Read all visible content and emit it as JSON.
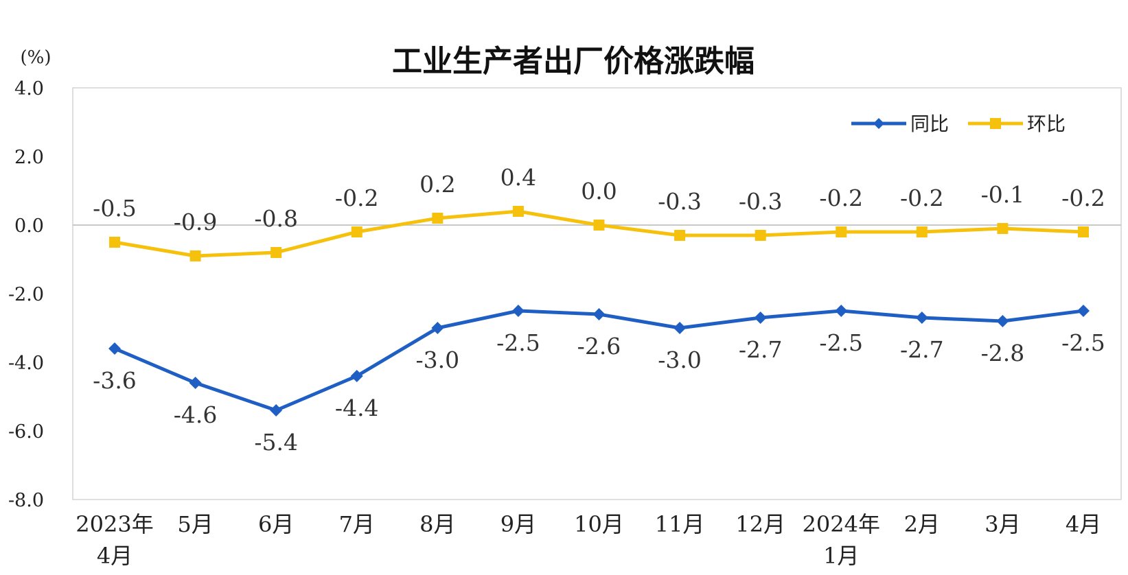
{
  "chart_data": {
    "type": "line",
    "title": "工业生产者出厂价格涨跌幅",
    "unit_label": "(%)",
    "categories": [
      [
        "2023年",
        "4月"
      ],
      [
        "5月"
      ],
      [
        "6月"
      ],
      [
        "7月"
      ],
      [
        "8月"
      ],
      [
        "9月"
      ],
      [
        "10月"
      ],
      [
        "11月"
      ],
      [
        "12月"
      ],
      [
        "2024年",
        "1月"
      ],
      [
        "2月"
      ],
      [
        "3月"
      ],
      [
        "4月"
      ]
    ],
    "ylim": [
      -8.0,
      4.0
    ],
    "yticks": [
      "4.0",
      "2.0",
      "0.0",
      "-2.0",
      "-4.0",
      "-6.0",
      "-8.0"
    ],
    "ytick_values": [
      4,
      2,
      0,
      -2,
      -4,
      -6,
      -8
    ],
    "legend_position": "top-right",
    "series": [
      {
        "name": "同比",
        "color": "#1f5fc4",
        "marker": "diamond",
        "label_position": "below",
        "values": [
          -3.6,
          -4.6,
          -5.4,
          -4.4,
          -3.0,
          -2.5,
          -2.6,
          -3.0,
          -2.7,
          -2.5,
          -2.7,
          -2.8,
          -2.5
        ],
        "labels": [
          "-3.6",
          "-4.6",
          "-5.4",
          "-4.4",
          "-3.0",
          "-2.5",
          "-2.6",
          "-3.0",
          "-2.7",
          "-2.5",
          "-2.7",
          "-2.8",
          "-2.5"
        ]
      },
      {
        "name": "环比",
        "color": "#f5c10d",
        "marker": "square",
        "label_position": "above",
        "values": [
          -0.5,
          -0.9,
          -0.8,
          -0.2,
          0.2,
          0.4,
          0.0,
          -0.3,
          -0.3,
          -0.2,
          -0.2,
          -0.1,
          -0.2
        ],
        "labels": [
          "-0.5",
          "-0.9",
          "-0.8",
          "-0.2",
          "0.2",
          "0.4",
          "0.0",
          "-0.3",
          "-0.3",
          "-0.2",
          "-0.2",
          "-0.1",
          "-0.2"
        ]
      }
    ]
  }
}
